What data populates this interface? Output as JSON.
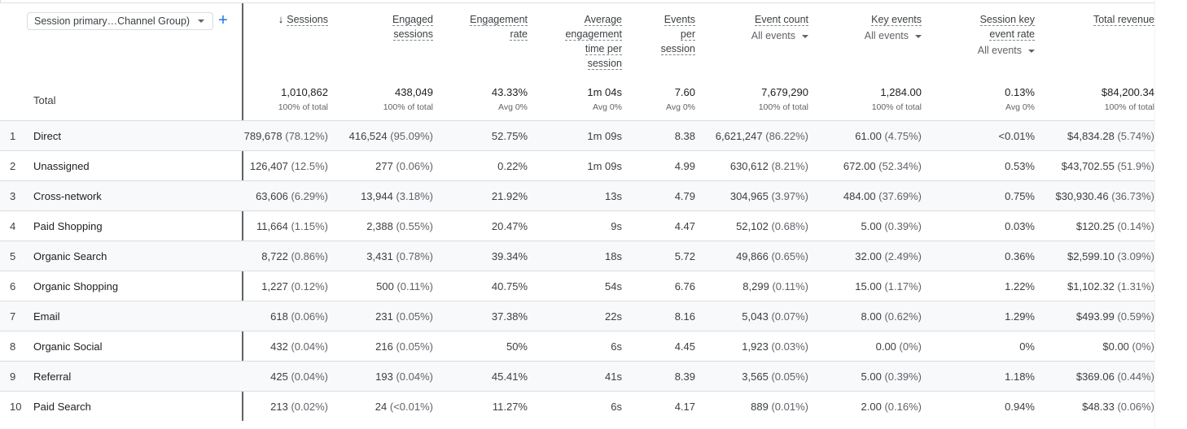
{
  "dimension_selector": {
    "label": "Session primary…Channel Group)",
    "add_symbol": "+"
  },
  "headers": {
    "sessions": [
      "Sessions"
    ],
    "engaged": [
      "Engaged",
      "sessions"
    ],
    "engrate": [
      "Engagement",
      "rate"
    ],
    "avgtime": [
      "Average",
      "engagement",
      "time per",
      "session"
    ],
    "evps": [
      "Events",
      "per",
      "session"
    ],
    "evcount": [
      "Event count"
    ],
    "keyev": [
      "Key events"
    ],
    "skrate": [
      "Session key",
      "event rate"
    ],
    "revenue": [
      "Total revenue"
    ],
    "filter_label": "All events",
    "sort_icon": "↓"
  },
  "totals": {
    "label": "Total",
    "sessions": {
      "value": "1,010,862",
      "sub": "100% of total"
    },
    "engaged": {
      "value": "438,049",
      "sub": "100% of total"
    },
    "engrate": {
      "value": "43.33%",
      "sub": "Avg 0%"
    },
    "avgtime": {
      "value": "1m 04s",
      "sub": "Avg 0%"
    },
    "evps": {
      "value": "7.60",
      "sub": "Avg 0%"
    },
    "evcount": {
      "value": "7,679,290",
      "sub": "100% of total"
    },
    "keyev": {
      "value": "1,284.00",
      "sub": "100% of total"
    },
    "skrate": {
      "value": "0.13%",
      "sub": "Avg 0%"
    },
    "revenue": {
      "value": "$84,200.34",
      "sub": "100% of total"
    }
  },
  "rows": [
    {
      "idx": "1",
      "channel": "Direct",
      "sessions": "789,678",
      "sessions_pct": "(78.12%)",
      "engaged": "416,524",
      "engaged_pct": "(95.09%)",
      "engrate": "52.75%",
      "avgtime": "1m 09s",
      "evps": "8.38",
      "evcount": "6,621,247",
      "evcount_pct": "(86.22%)",
      "keyev": "61.00",
      "keyev_pct": "(4.75%)",
      "skrate": "<0.01%",
      "revenue": "$4,834.28",
      "revenue_pct": "(5.74%)"
    },
    {
      "idx": "2",
      "channel": "Unassigned",
      "sessions": "126,407",
      "sessions_pct": "(12.5%)",
      "engaged": "277",
      "engaged_pct": "(0.06%)",
      "engrate": "0.22%",
      "avgtime": "1m 09s",
      "evps": "4.99",
      "evcount": "630,612",
      "evcount_pct": "(8.21%)",
      "keyev": "672.00",
      "keyev_pct": "(52.34%)",
      "skrate": "0.53%",
      "revenue": "$43,702.55",
      "revenue_pct": "(51.9%)"
    },
    {
      "idx": "3",
      "channel": "Cross-network",
      "sessions": "63,606",
      "sessions_pct": "(6.29%)",
      "engaged": "13,944",
      "engaged_pct": "(3.18%)",
      "engrate": "21.92%",
      "avgtime": "13s",
      "evps": "4.79",
      "evcount": "304,965",
      "evcount_pct": "(3.97%)",
      "keyev": "484.00",
      "keyev_pct": "(37.69%)",
      "skrate": "0.75%",
      "revenue": "$30,930.46",
      "revenue_pct": "(36.73%)"
    },
    {
      "idx": "4",
      "channel": "Paid Shopping",
      "sessions": "11,664",
      "sessions_pct": "(1.15%)",
      "engaged": "2,388",
      "engaged_pct": "(0.55%)",
      "engrate": "20.47%",
      "avgtime": "9s",
      "evps": "4.47",
      "evcount": "52,102",
      "evcount_pct": "(0.68%)",
      "keyev": "5.00",
      "keyev_pct": "(0.39%)",
      "skrate": "0.03%",
      "revenue": "$120.25",
      "revenue_pct": "(0.14%)"
    },
    {
      "idx": "5",
      "channel": "Organic Search",
      "sessions": "8,722",
      "sessions_pct": "(0.86%)",
      "engaged": "3,431",
      "engaged_pct": "(0.78%)",
      "engrate": "39.34%",
      "avgtime": "18s",
      "evps": "5.72",
      "evcount": "49,866",
      "evcount_pct": "(0.65%)",
      "keyev": "32.00",
      "keyev_pct": "(2.49%)",
      "skrate": "0.36%",
      "revenue": "$2,599.10",
      "revenue_pct": "(3.09%)"
    },
    {
      "idx": "6",
      "channel": "Organic Shopping",
      "sessions": "1,227",
      "sessions_pct": "(0.12%)",
      "engaged": "500",
      "engaged_pct": "(0.11%)",
      "engrate": "40.75%",
      "avgtime": "54s",
      "evps": "6.76",
      "evcount": "8,299",
      "evcount_pct": "(0.11%)",
      "keyev": "15.00",
      "keyev_pct": "(1.17%)",
      "skrate": "1.22%",
      "revenue": "$1,102.32",
      "revenue_pct": "(1.31%)"
    },
    {
      "idx": "7",
      "channel": "Email",
      "sessions": "618",
      "sessions_pct": "(0.06%)",
      "engaged": "231",
      "engaged_pct": "(0.05%)",
      "engrate": "37.38%",
      "avgtime": "22s",
      "evps": "8.16",
      "evcount": "5,043",
      "evcount_pct": "(0.07%)",
      "keyev": "8.00",
      "keyev_pct": "(0.62%)",
      "skrate": "1.29%",
      "revenue": "$493.99",
      "revenue_pct": "(0.59%)"
    },
    {
      "idx": "8",
      "channel": "Organic Social",
      "sessions": "432",
      "sessions_pct": "(0.04%)",
      "engaged": "216",
      "engaged_pct": "(0.05%)",
      "engrate": "50%",
      "avgtime": "6s",
      "evps": "4.45",
      "evcount": "1,923",
      "evcount_pct": "(0.03%)",
      "keyev": "0.00",
      "keyev_pct": "(0%)",
      "skrate": "0%",
      "revenue": "$0.00",
      "revenue_pct": "(0%)"
    },
    {
      "idx": "9",
      "channel": "Referral",
      "sessions": "425",
      "sessions_pct": "(0.04%)",
      "engaged": "193",
      "engaged_pct": "(0.04%)",
      "engrate": "45.41%",
      "avgtime": "41s",
      "evps": "8.39",
      "evcount": "3,565",
      "evcount_pct": "(0.05%)",
      "keyev": "5.00",
      "keyev_pct": "(0.39%)",
      "skrate": "1.18%",
      "revenue": "$369.06",
      "revenue_pct": "(0.44%)"
    },
    {
      "idx": "10",
      "channel": "Paid Search",
      "sessions": "213",
      "sessions_pct": "(0.02%)",
      "engaged": "24",
      "engaged_pct": "(<0.01%)",
      "engrate": "11.27%",
      "avgtime": "6s",
      "evps": "4.17",
      "evcount": "889",
      "evcount_pct": "(0.01%)",
      "keyev": "2.00",
      "keyev_pct": "(0.16%)",
      "skrate": "0.94%",
      "revenue": "$48.33",
      "revenue_pct": "(0.06%)"
    }
  ]
}
